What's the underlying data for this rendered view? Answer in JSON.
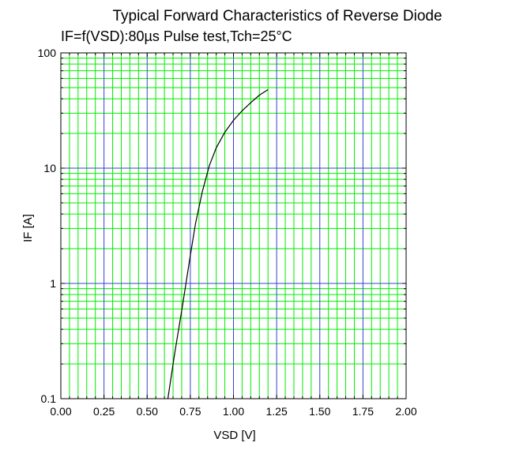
{
  "chart_data": {
    "type": "line",
    "title": "Typical Forward Characteristics of Reverse Diode",
    "subtitle": "IF=f(VSD):80µs Pulse test,Tch=25°C",
    "xlabel": "VSD [V]",
    "ylabel": "IF [A]",
    "xlim": [
      0,
      2
    ],
    "ylim": [
      0.1,
      100
    ],
    "yscale": "log",
    "grid": true,
    "legend": "none",
    "x_ticks": [
      "0.00",
      "0.25",
      "0.50",
      "0.75",
      "1.00",
      "1.25",
      "1.50",
      "1.75",
      "2.00"
    ],
    "y_ticks": [
      "0.1",
      "1",
      "10",
      "100"
    ],
    "colors": {
      "major_grid": "#3344cc",
      "minor_grid": "#00ee00",
      "curve": "#000000"
    },
    "series": [
      {
        "x": [
          0.62,
          0.66,
          0.7,
          0.72,
          0.75,
          0.78,
          0.82,
          0.86,
          0.9,
          0.95,
          1.0,
          1.05,
          1.1,
          1.15,
          1.2
        ],
        "y": [
          0.1,
          0.25,
          0.58,
          0.9,
          1.75,
          3.3,
          6.3,
          10.5,
          15.0,
          20.5,
          26.0,
          31.5,
          37.0,
          43.0,
          48.0
        ]
      }
    ]
  }
}
